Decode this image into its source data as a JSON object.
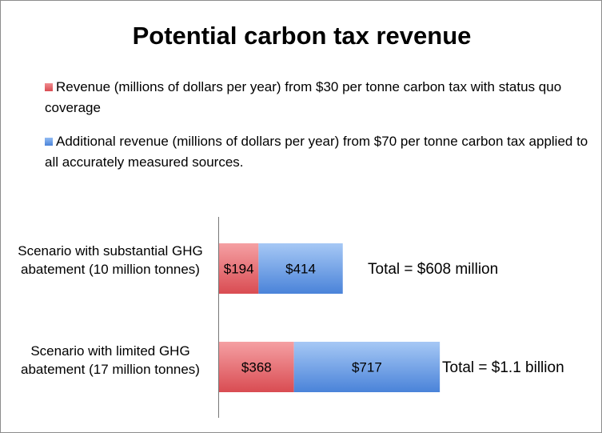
{
  "chart_data": {
    "type": "bar",
    "orientation": "horizontal",
    "stacked": true,
    "title": "Potential carbon tax revenue",
    "legend_position": "top",
    "categories": [
      "Scenario with substantial GHG abatement (10 million tonnes)",
      "Scenario with limited GHG abatement (17 million tonnes)"
    ],
    "series": [
      {
        "name": "Revenue (millions of dollars per year) from $30 per tonne carbon tax with status quo coverage",
        "values": [
          194,
          368
        ],
        "labels": [
          "$194",
          "$368"
        ],
        "color": "#e0656a"
      },
      {
        "name": "Additional revenue (millions of dollars per year) from $70 per tonne carbon tax applied to all accurately measured sources.",
        "values": [
          414,
          717
        ],
        "labels": [
          "$414",
          "$717"
        ],
        "color": "#6b9fe6"
      }
    ],
    "totals": [
      "Total = $608 million",
      "Total = $1.1 billion"
    ],
    "xlim": [
      0,
      1200
    ],
    "grid": false
  }
}
